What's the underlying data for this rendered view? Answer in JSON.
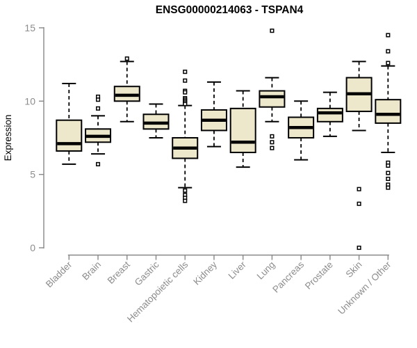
{
  "chart_data": {
    "type": "boxplot",
    "title": "ENSG00000214063 - TSPAN4",
    "ylabel": "Expression",
    "xlabel": "",
    "ylim": [
      0,
      15
    ],
    "yticks": [
      0,
      5,
      10,
      15
    ],
    "grid": false,
    "legend": "none",
    "categories": [
      "Bladder",
      "Brain",
      "Breast",
      "Gastric",
      "Hematopoietic cells",
      "Kidney",
      "Liver",
      "Lung",
      "Pancreas",
      "Prostate",
      "Skin",
      "Unknown / Other"
    ],
    "series": [
      {
        "category": "Bladder",
        "whisker_low": 5.7,
        "q1": 6.6,
        "median": 7.1,
        "q3": 8.7,
        "whisker_high": 11.2,
        "outliers": []
      },
      {
        "category": "Brain",
        "whisker_low": 6.4,
        "q1": 7.2,
        "median": 7.6,
        "q3": 8.1,
        "whisker_high": 9.0,
        "outliers": [
          10.3,
          10.1,
          9.5,
          5.7
        ]
      },
      {
        "category": "Breast",
        "whisker_low": 8.6,
        "q1": 10.0,
        "median": 10.4,
        "q3": 11.0,
        "whisker_high": 12.7,
        "outliers": [
          12.9
        ]
      },
      {
        "category": "Gastric",
        "whisker_low": 7.5,
        "q1": 8.1,
        "median": 8.5,
        "q3": 9.1,
        "whisker_high": 9.8,
        "outliers": []
      },
      {
        "category": "Hematopoietic cells",
        "whisker_low": 4.1,
        "q1": 6.1,
        "median": 6.8,
        "q3": 7.5,
        "whisker_high": 9.7,
        "outliers": [
          12.0,
          11.4,
          10.7,
          10.6,
          10.2,
          10.1,
          10.0,
          9.9,
          9.8,
          3.9,
          3.6,
          3.4,
          3.2
        ]
      },
      {
        "category": "Kidney",
        "whisker_low": 6.9,
        "q1": 8.0,
        "median": 8.7,
        "q3": 9.4,
        "whisker_high": 11.3,
        "outliers": []
      },
      {
        "category": "Liver",
        "whisker_low": 5.5,
        "q1": 6.5,
        "median": 7.2,
        "q3": 9.5,
        "whisker_high": 10.7,
        "outliers": []
      },
      {
        "category": "Lung",
        "whisker_low": 8.6,
        "q1": 9.6,
        "median": 10.3,
        "q3": 10.7,
        "whisker_high": 11.6,
        "outliers": [
          14.8,
          7.6,
          7.2,
          6.8
        ]
      },
      {
        "category": "Pancreas",
        "whisker_low": 6.0,
        "q1": 7.5,
        "median": 8.2,
        "q3": 8.9,
        "whisker_high": 10.0,
        "outliers": []
      },
      {
        "category": "Prostate",
        "whisker_low": 7.6,
        "q1": 8.6,
        "median": 9.2,
        "q3": 9.5,
        "whisker_high": 10.6,
        "outliers": []
      },
      {
        "category": "Skin",
        "whisker_low": 8.0,
        "q1": 9.3,
        "median": 10.5,
        "q3": 11.6,
        "whisker_high": 12.7,
        "outliers": [
          4.0,
          3.0,
          0.0
        ]
      },
      {
        "category": "Unknown / Other",
        "whisker_low": 6.5,
        "q1": 8.5,
        "median": 9.1,
        "q3": 10.1,
        "whisker_high": 12.4,
        "outliers": [
          14.5,
          13.4,
          12.6,
          5.8,
          5.6,
          5.1,
          4.7,
          4.3,
          4.1
        ]
      }
    ],
    "colors": {
      "box_fill": "#EDE7CC",
      "box_border": "#000000",
      "median": "#000000",
      "whisker": "#000000",
      "outlier_fill": "#ffffff",
      "axis": "#878787",
      "tick_label": "#8C8C8C",
      "title": "#000000"
    }
  }
}
